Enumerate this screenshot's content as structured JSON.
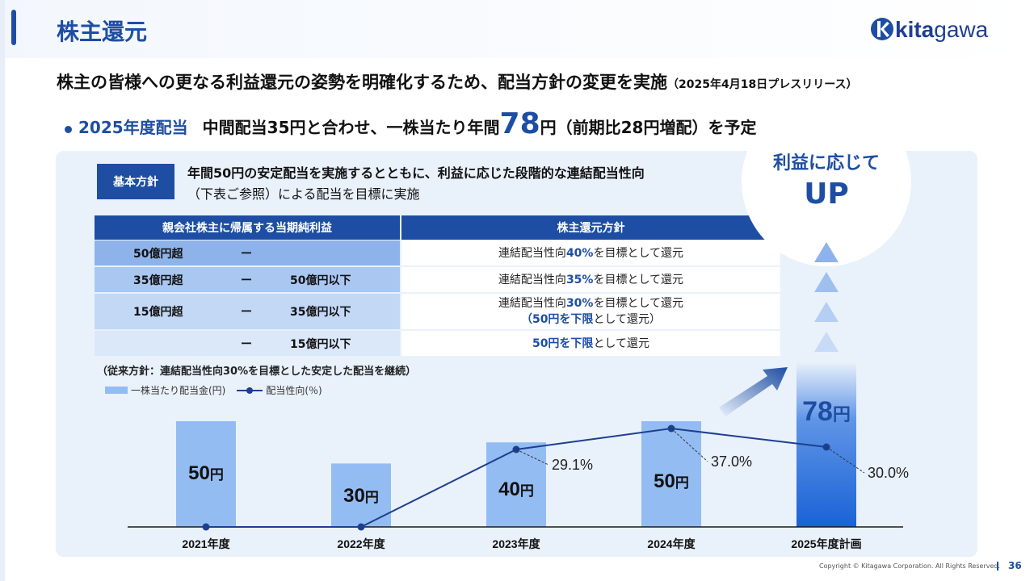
{
  "header": {
    "title": "株主還元",
    "logo_text_bold": "kita",
    "logo_text_light": "gawa"
  },
  "headline": {
    "main": "株主の皆様への更なる利益還元の姿勢を明確化するため、配当方針の変更を実施",
    "note": "（2025年4月18日プレスリリース）"
  },
  "bullet": {
    "label": "2025年度配当",
    "pre": "中間配当35円と合わせ、一株当たり年間",
    "big": "78",
    "post": "円（前期比28円増配）を予定"
  },
  "policy": {
    "badge": "基本方針",
    "line1": "年間50円の安定配当を実施するとともに、利益に応じた段階的な連結配当性向",
    "line2": "（下表ご参照）による配当を目標に実施"
  },
  "table": {
    "header_left": "親会社株主に帰属する当期純利益",
    "header_right": "株主還元方針",
    "dash": "ー",
    "rows": [
      {
        "low": "50億円超",
        "high": "",
        "r1_pre": "連結配当性向",
        "r1_hl": "40%",
        "r1_post": "を目標として還元",
        "r2_hl": "",
        "r2_post": ""
      },
      {
        "low": "35億円超",
        "high": "50億円以下",
        "r1_pre": "連結配当性向",
        "r1_hl": "35%",
        "r1_post": "を目標として還元",
        "r2_hl": "",
        "r2_post": ""
      },
      {
        "low": "15億円超",
        "high": "35億円以下",
        "r1_pre": "連結配当性向",
        "r1_hl": "30%",
        "r1_post": "を目標として還元",
        "r2_hl": "（50円を下限",
        "r2_post": "として還元）"
      },
      {
        "low": "",
        "high": "15億円以下",
        "r1_pre": "",
        "r1_hl": "50円を下限",
        "r1_post": "として還元",
        "r2_hl": "",
        "r2_post": ""
      }
    ]
  },
  "old_policy": "（従来方針：連結配当性向30%を目標とした安定した配当を継続）",
  "legend": {
    "bar": "一株当たり配当金(円)",
    "line": "配当性向(％)"
  },
  "badge": {
    "line1": "利益に応じて",
    "line2": "UP"
  },
  "chart_data": {
    "type": "bar",
    "categories": [
      "2021年度",
      "2022年度",
      "2023年度",
      "2024年度",
      "2025年度計画"
    ],
    "series": [
      {
        "name": "一株当たり配当金(円)",
        "type": "bar",
        "values": [
          50,
          30,
          40,
          50,
          78
        ],
        "labels": [
          "50",
          "30",
          "40",
          "50",
          "78"
        ],
        "unit": "円"
      },
      {
        "name": "配当性向(％)",
        "type": "line",
        "values": [
          null,
          null,
          29.1,
          37.0,
          30.0
        ],
        "labels": [
          "",
          "",
          "29.1%",
          "37.0%",
          "30.0%"
        ]
      }
    ],
    "colors": {
      "bar": "#93bcf2",
      "bar_highlight": "#1a62d6",
      "line": "#1e3f8f"
    }
  },
  "footer": {
    "copyright": "Copyright © Kitagawa Corporation. All Rights Reserved.",
    "page": "36"
  }
}
